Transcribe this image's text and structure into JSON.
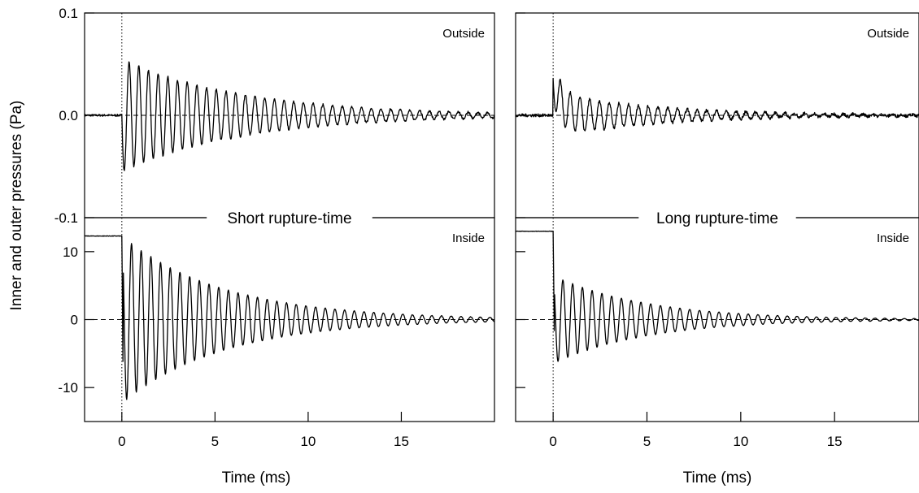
{
  "figure": {
    "ylabel": "Inner and outer pressures (Pa)",
    "xlabel": "Time (ms)"
  },
  "chart_data": [
    {
      "type": "line",
      "column": "left",
      "band_title": "Short rupture-time",
      "xlim": [
        -2,
        20
      ],
      "x_ticks": [
        0,
        5,
        10,
        15
      ],
      "panels": [
        {
          "name": "Outside",
          "label": "Outside",
          "ylim": [
            -0.1,
            0.1
          ],
          "y_ticks": [
            {
              "value": 0.1,
              "label": "0.1"
            },
            {
              "value": 0.0,
              "label": "0.0"
            },
            {
              "value": -0.1,
              "label": "-0.1"
            }
          ],
          "signal": {
            "baseline": 0.0,
            "onset_ms": 0.0,
            "initial_jump": 0.0,
            "amplitude": 0.055,
            "period_ms": 0.52,
            "decay_ms": 6.5,
            "noise": 0.002
          },
          "zero_line": 0.0
        },
        {
          "name": "Inside",
          "label": "Inside",
          "ylim": [
            -15,
            15
          ],
          "y_ticks": [
            {
              "value": 10,
              "label": "10"
            },
            {
              "value": 0,
              "label": "0"
            },
            {
              "value": -10,
              "label": "-10"
            }
          ],
          "signal": {
            "baseline": 12.3,
            "onset_ms": 0.0,
            "initial_jump": 0.0,
            "amplitude": 12.3,
            "period_ms": 0.52,
            "decay_ms": 5.5,
            "noise": 0.08
          },
          "zero_line": 0
        }
      ]
    },
    {
      "type": "line",
      "column": "right",
      "band_title": "Long rupture-time",
      "xlim": [
        -2,
        19.5
      ],
      "x_ticks": [
        0,
        5,
        10,
        15
      ],
      "panels": [
        {
          "name": "Outside",
          "label": "Outside",
          "ylim": [
            -0.1,
            0.1
          ],
          "y_ticks": [
            {
              "value": 0.1,
              "label": ""
            },
            {
              "value": 0.0,
              "label": ""
            },
            {
              "value": -0.1,
              "label": ""
            }
          ],
          "signal": {
            "baseline": 0.0,
            "onset_ms": 0.0,
            "initial_jump": 0.035,
            "amplitude": 0.022,
            "period_ms": 0.52,
            "decay_ms": 5.5,
            "noise": 0.003
          },
          "zero_line": 0.0
        },
        {
          "name": "Inside",
          "label": "Inside",
          "ylim": [
            -15,
            15
          ],
          "y_ticks": [
            {
              "value": 10,
              "label": ""
            },
            {
              "value": 0,
              "label": ""
            },
            {
              "value": -10,
              "label": ""
            }
          ],
          "signal": {
            "baseline": 13.0,
            "onset_ms": 0.0,
            "initial_jump": 0.0,
            "amplitude": 6.5,
            "period_ms": 0.52,
            "decay_ms": 5.0,
            "noise": 0.06
          },
          "zero_line": 0
        }
      ]
    }
  ]
}
